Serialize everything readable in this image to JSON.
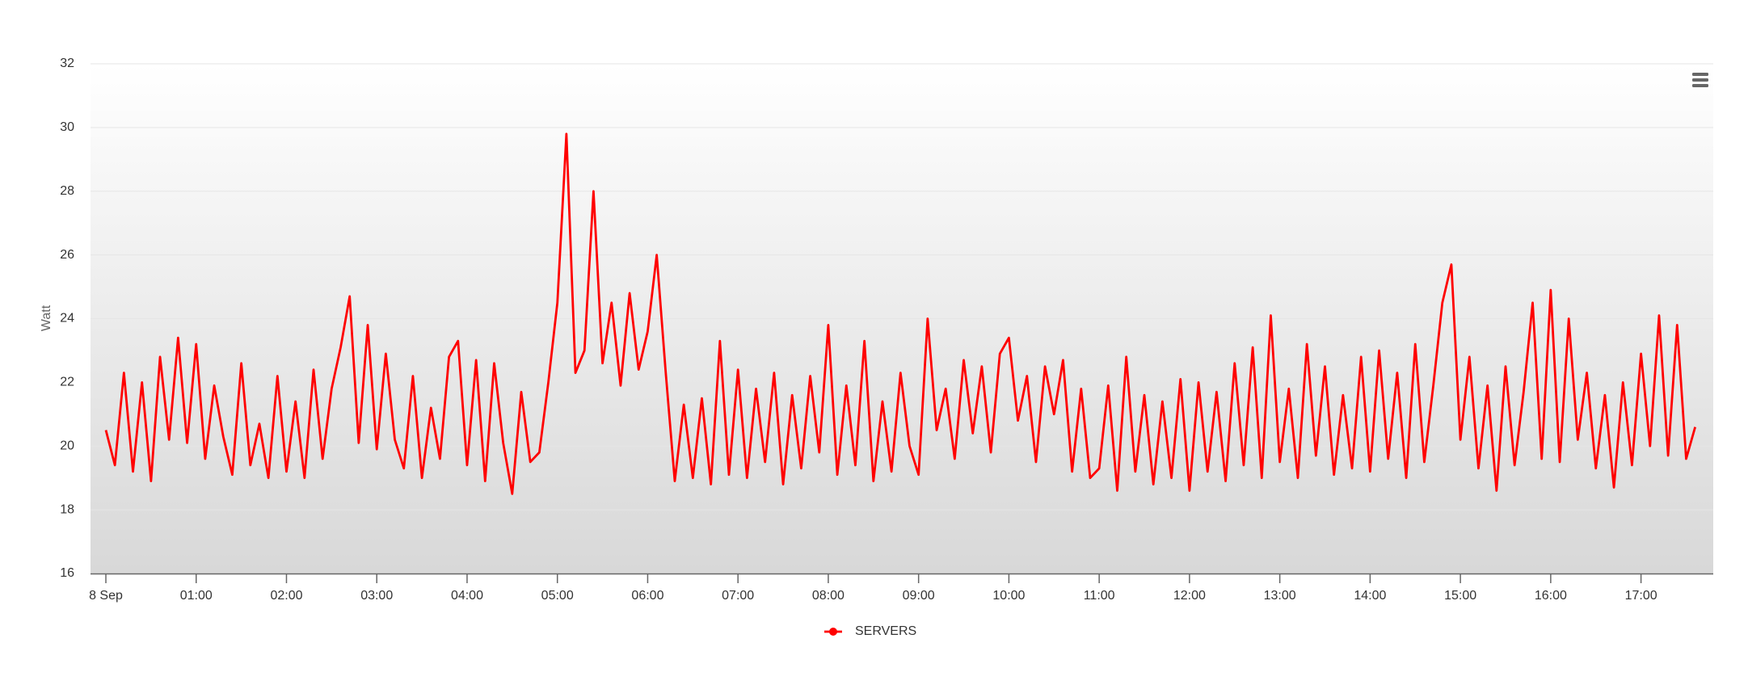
{
  "chart_data": {
    "type": "line",
    "y_label": "Watt",
    "xlim": [
      -0.17,
      17.8
    ],
    "xticks": [
      {
        "value": 0,
        "label": "8 Sep"
      },
      {
        "value": 1,
        "label": "01:00"
      },
      {
        "value": 2,
        "label": "02:00"
      },
      {
        "value": 3,
        "label": "03:00"
      },
      {
        "value": 4,
        "label": "04:00"
      },
      {
        "value": 5,
        "label": "05:00"
      },
      {
        "value": 6,
        "label": "06:00"
      },
      {
        "value": 7,
        "label": "07:00"
      },
      {
        "value": 8,
        "label": "08:00"
      },
      {
        "value": 9,
        "label": "09:00"
      },
      {
        "value": 10,
        "label": "10:00"
      },
      {
        "value": 11,
        "label": "11:00"
      },
      {
        "value": 12,
        "label": "12:00"
      },
      {
        "value": 13,
        "label": "13:00"
      },
      {
        "value": 14,
        "label": "14:00"
      },
      {
        "value": 15,
        "label": "15:00"
      },
      {
        "value": 16,
        "label": "16:00"
      },
      {
        "value": 17,
        "label": "17:00"
      }
    ],
    "ylim": [
      16,
      32
    ],
    "yticks": [
      16,
      18,
      20,
      22,
      24,
      26,
      28,
      30,
      32
    ],
    "grid": true,
    "legend": "bottom",
    "x": [
      0,
      0.1,
      0.2,
      0.3,
      0.4,
      0.5,
      0.6,
      0.7,
      0.8,
      0.9,
      1,
      1.1,
      1.2,
      1.3,
      1.4,
      1.5,
      1.6,
      1.7,
      1.8,
      1.9,
      2,
      2.1,
      2.2,
      2.3,
      2.4,
      2.5,
      2.6,
      2.7,
      2.8,
      2.9,
      3,
      3.1,
      3.2,
      3.3,
      3.4,
      3.5,
      3.6,
      3.7,
      3.8,
      3.9,
      4,
      4.1,
      4.2,
      4.3,
      4.4,
      4.5,
      4.6,
      4.7,
      4.8,
      4.9,
      5,
      5.1,
      5.2,
      5.3,
      5.4,
      5.5,
      5.6,
      5.7,
      5.8,
      5.9,
      6,
      6.1,
      6.2,
      6.3,
      6.4,
      6.5,
      6.6,
      6.7,
      6.8,
      6.9,
      7,
      7.1,
      7.2,
      7.3,
      7.4,
      7.5,
      7.6,
      7.7,
      7.8,
      7.9,
      8,
      8.1,
      8.2,
      8.3,
      8.4,
      8.5,
      8.6,
      8.7,
      8.8,
      8.9,
      9,
      9.1,
      9.2,
      9.3,
      9.4,
      9.5,
      9.6,
      9.7,
      9.8,
      9.9,
      10,
      10.1,
      10.2,
      10.3,
      10.4,
      10.5,
      10.6,
      10.7,
      10.8,
      10.9,
      11,
      11.1,
      11.2,
      11.3,
      11.4,
      11.5,
      11.6,
      11.7,
      11.8,
      11.9,
      12,
      12.1,
      12.2,
      12.3,
      12.4,
      12.5,
      12.6,
      12.7,
      12.8,
      12.9,
      13,
      13.1,
      13.2,
      13.3,
      13.4,
      13.5,
      13.6,
      13.7,
      13.8,
      13.9,
      14,
      14.1,
      14.2,
      14.3,
      14.4,
      14.5,
      14.6,
      14.7,
      14.8,
      14.9,
      15,
      15.1,
      15.2,
      15.3,
      15.4,
      15.5,
      15.6,
      15.7,
      15.8,
      15.9,
      16,
      16.1,
      16.2,
      16.3,
      16.4,
      16.5,
      16.6,
      16.7,
      16.8,
      16.9,
      17,
      17.1,
      17.2,
      17.3,
      17.4,
      17.5,
      17.6
    ],
    "series": [
      {
        "name": "SERVERS",
        "color": "#ff0000",
        "values": [
          20.5,
          19.4,
          22.3,
          19.2,
          22.0,
          18.9,
          22.8,
          20.2,
          23.4,
          20.1,
          23.2,
          19.6,
          21.9,
          20.3,
          19.1,
          22.6,
          19.4,
          20.7,
          19.0,
          22.2,
          19.2,
          21.4,
          19.0,
          22.4,
          19.6,
          21.8,
          23.1,
          24.7,
          20.1,
          23.8,
          19.9,
          22.9,
          20.2,
          19.3,
          22.2,
          19.0,
          21.2,
          19.6,
          22.8,
          23.3,
          19.4,
          22.7,
          18.9,
          22.6,
          20.1,
          18.5,
          21.7,
          19.5,
          19.8,
          22.0,
          24.5,
          29.8,
          22.3,
          23.0,
          28.0,
          22.6,
          24.5,
          21.9,
          24.8,
          22.4,
          23.6,
          26.0,
          22.3,
          18.9,
          21.3,
          19.0,
          21.5,
          18.8,
          23.3,
          19.1,
          22.4,
          19.0,
          21.8,
          19.5,
          22.3,
          18.8,
          21.6,
          19.3,
          22.2,
          19.8,
          23.8,
          19.1,
          21.9,
          19.4,
          23.3,
          18.9,
          21.4,
          19.2,
          22.3,
          20.0,
          19.1,
          24.0,
          20.5,
          21.8,
          19.6,
          22.7,
          20.4,
          22.5,
          19.8,
          22.9,
          23.4,
          20.8,
          22.2,
          19.5,
          22.5,
          21.0,
          22.7,
          19.2,
          21.8,
          19.0,
          19.3,
          21.9,
          18.6,
          22.8,
          19.2,
          21.6,
          18.8,
          21.4,
          19.0,
          22.1,
          18.6,
          22.0,
          19.2,
          21.7,
          18.9,
          22.6,
          19.4,
          23.1,
          19.0,
          24.1,
          19.5,
          21.8,
          19.0,
          23.2,
          19.7,
          22.5,
          19.1,
          21.6,
          19.3,
          22.8,
          19.2,
          23.0,
          19.6,
          22.3,
          19.0,
          23.2,
          19.5,
          21.9,
          24.5,
          25.7,
          20.2,
          22.8,
          19.3,
          21.9,
          18.6,
          22.5,
          19.4,
          21.7,
          24.5,
          19.6,
          24.9,
          19.5,
          24.0,
          20.2,
          22.3,
          19.3,
          21.6,
          18.7,
          22.0,
          19.4,
          22.9,
          20.0,
          24.1,
          19.7,
          23.8,
          19.6,
          20.6
        ]
      }
    ]
  }
}
